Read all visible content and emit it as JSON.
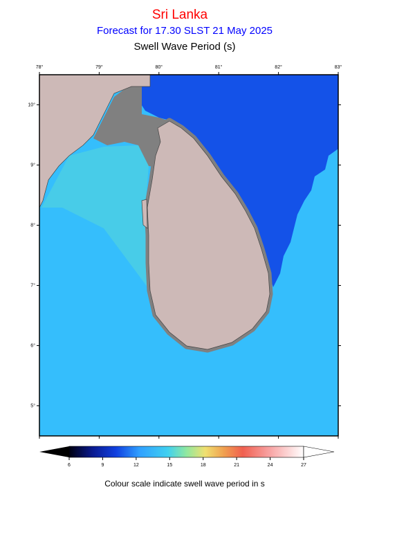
{
  "map_data": {
    "title": "Sri Lanka",
    "subtitle": "Forecast for  17.30 SLST 21 May 2025",
    "variable": "Swell Wave Period (s)",
    "lon_range": [
      78,
      83
    ],
    "lat_range": [
      4.5,
      10.5
    ],
    "lon_ticks": [
      {
        "value": 78,
        "label": "78°"
      },
      {
        "value": 79,
        "label": "79°"
      },
      {
        "value": 80,
        "label": "80°"
      },
      {
        "value": 81,
        "label": "81°"
      },
      {
        "value": 82,
        "label": "82°"
      },
      {
        "value": 83,
        "label": "83°"
      }
    ],
    "lat_ticks": [
      {
        "value": 5,
        "label": "5°"
      },
      {
        "value": 6,
        "label": "6°"
      },
      {
        "value": 7,
        "label": "7°"
      },
      {
        "value": 8,
        "label": "8°"
      },
      {
        "value": 9,
        "label": "9°"
      },
      {
        "value": 10,
        "label": "10°"
      }
    ],
    "colorbar": {
      "range": [
        6,
        27
      ],
      "ticks": [
        6,
        9,
        12,
        15,
        18,
        21,
        24,
        27
      ],
      "caption": "Colour scale indicate swell wave period in s"
    }
  }
}
